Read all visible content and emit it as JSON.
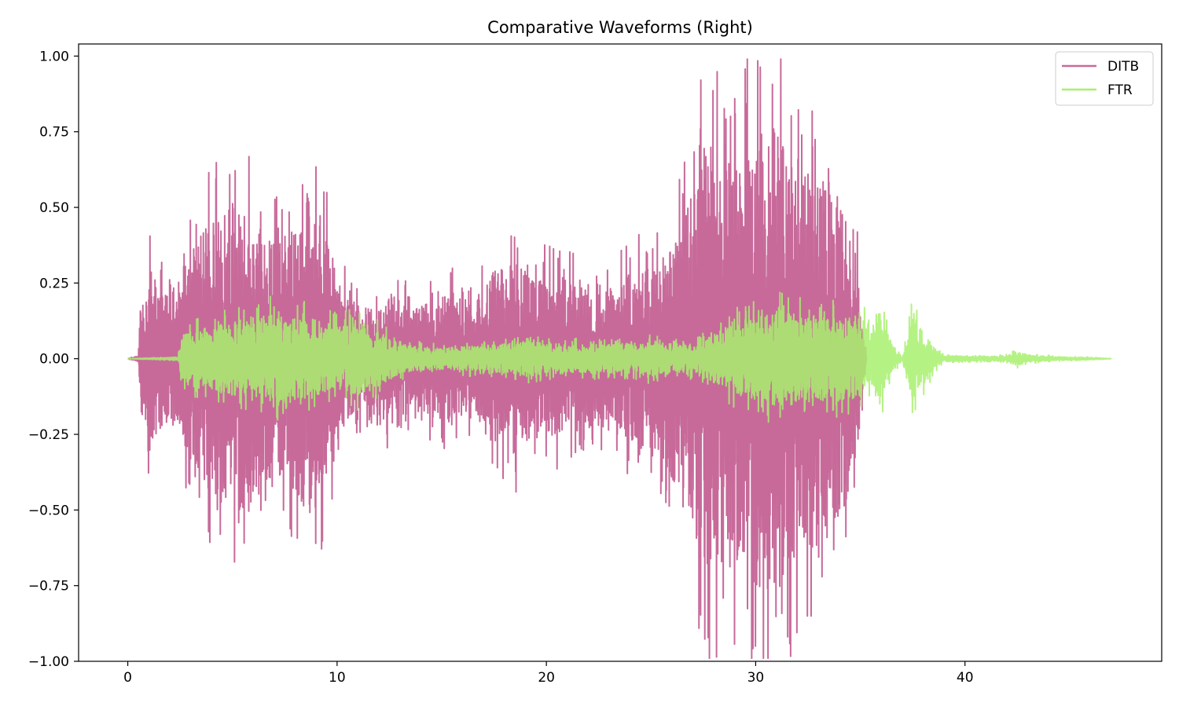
{
  "chart_data": {
    "type": "line",
    "title": "Comparative Waveforms (Right)",
    "xlabel": "",
    "ylabel": "",
    "xlim": [
      -2.35,
      49.4
    ],
    "ylim": [
      -1.0,
      1.04
    ],
    "xticks": [
      0,
      10,
      20,
      30,
      40
    ],
    "xtick_labels": [
      "0",
      "10",
      "20",
      "30",
      "40"
    ],
    "yticks": [
      1.0,
      0.75,
      0.5,
      0.25,
      0.0,
      -0.25,
      -0.5,
      -0.75,
      -1.0
    ],
    "ytick_labels": [
      "1.00",
      "0.75",
      "0.50",
      "0.25",
      "0.00",
      "−0.25",
      "−0.50",
      "−0.75",
      "−1.00"
    ],
    "grid": false,
    "legend_position": "top-right",
    "series": [
      {
        "name": "DITB",
        "color": "#c76a9a",
        "duration": 35.3,
        "envelope_breakpoints": [
          [
            0.0,
            0.0
          ],
          [
            0.5,
            0.01
          ],
          [
            0.6,
            0.16
          ],
          [
            1.0,
            0.32
          ],
          [
            1.4,
            0.26
          ],
          [
            1.8,
            0.22
          ],
          [
            2.3,
            0.18
          ],
          [
            3.0,
            0.38
          ],
          [
            4.0,
            0.45
          ],
          [
            5.0,
            0.52
          ],
          [
            6.0,
            0.5
          ],
          [
            6.6,
            0.4
          ],
          [
            7.2,
            0.38
          ],
          [
            8.0,
            0.45
          ],
          [
            8.5,
            0.56
          ],
          [
            9.2,
            0.48
          ],
          [
            10.0,
            0.28
          ],
          [
            10.5,
            0.2
          ],
          [
            11.5,
            0.17
          ],
          [
            12.5,
            0.22
          ],
          [
            13.5,
            0.18
          ],
          [
            14.5,
            0.2
          ],
          [
            15.5,
            0.22
          ],
          [
            16.5,
            0.18
          ],
          [
            17.5,
            0.3
          ],
          [
            18.5,
            0.32
          ],
          [
            19.5,
            0.26
          ],
          [
            20.5,
            0.28
          ],
          [
            21.5,
            0.24
          ],
          [
            22.5,
            0.22
          ],
          [
            23.5,
            0.26
          ],
          [
            24.5,
            0.3
          ],
          [
            25.5,
            0.34
          ],
          [
            26.2,
            0.42
          ],
          [
            26.8,
            0.55
          ],
          [
            27.5,
            0.7
          ],
          [
            28.3,
            0.75
          ],
          [
            29.0,
            0.7
          ],
          [
            30.0,
            0.75
          ],
          [
            31.0,
            0.78
          ],
          [
            32.0,
            0.68
          ],
          [
            33.0,
            0.62
          ],
          [
            34.0,
            0.55
          ],
          [
            34.8,
            0.35
          ],
          [
            35.3,
            0.0
          ]
        ]
      },
      {
        "name": "FTR",
        "color": "#a8f06e",
        "duration": 47.0,
        "envelope_breakpoints": [
          [
            0.0,
            0.0
          ],
          [
            2.4,
            0.005
          ],
          [
            2.6,
            0.08
          ],
          [
            3.5,
            0.1
          ],
          [
            5.0,
            0.12
          ],
          [
            6.0,
            0.14
          ],
          [
            7.0,
            0.16
          ],
          [
            8.0,
            0.14
          ],
          [
            9.0,
            0.13
          ],
          [
            10.0,
            0.11
          ],
          [
            11.0,
            0.13
          ],
          [
            12.0,
            0.09
          ],
          [
            13.0,
            0.05
          ],
          [
            14.0,
            0.04
          ],
          [
            15.0,
            0.035
          ],
          [
            16.0,
            0.04
          ],
          [
            17.0,
            0.045
          ],
          [
            18.0,
            0.05
          ],
          [
            19.0,
            0.06
          ],
          [
            20.0,
            0.05
          ],
          [
            21.0,
            0.05
          ],
          [
            22.0,
            0.05
          ],
          [
            23.0,
            0.05
          ],
          [
            24.0,
            0.05
          ],
          [
            25.0,
            0.06
          ],
          [
            26.0,
            0.05
          ],
          [
            27.0,
            0.05
          ],
          [
            28.0,
            0.08
          ],
          [
            29.0,
            0.12
          ],
          [
            30.0,
            0.14
          ],
          [
            31.0,
            0.16
          ],
          [
            32.0,
            0.15
          ],
          [
            33.0,
            0.14
          ],
          [
            34.0,
            0.14
          ],
          [
            35.0,
            0.13
          ],
          [
            35.3,
            0.14
          ],
          [
            35.6,
            0.12
          ],
          [
            36.0,
            0.14
          ],
          [
            36.5,
            0.05
          ],
          [
            37.0,
            0.005
          ],
          [
            37.5,
            0.16
          ],
          [
            38.0,
            0.09
          ],
          [
            38.6,
            0.03
          ],
          [
            39.0,
            0.012
          ],
          [
            40.0,
            0.008
          ],
          [
            41.0,
            0.008
          ],
          [
            42.0,
            0.01
          ],
          [
            42.5,
            0.025
          ],
          [
            43.0,
            0.012
          ],
          [
            44.0,
            0.008
          ],
          [
            45.0,
            0.005
          ],
          [
            46.0,
            0.004
          ],
          [
            47.0,
            0.0
          ]
        ]
      }
    ]
  }
}
